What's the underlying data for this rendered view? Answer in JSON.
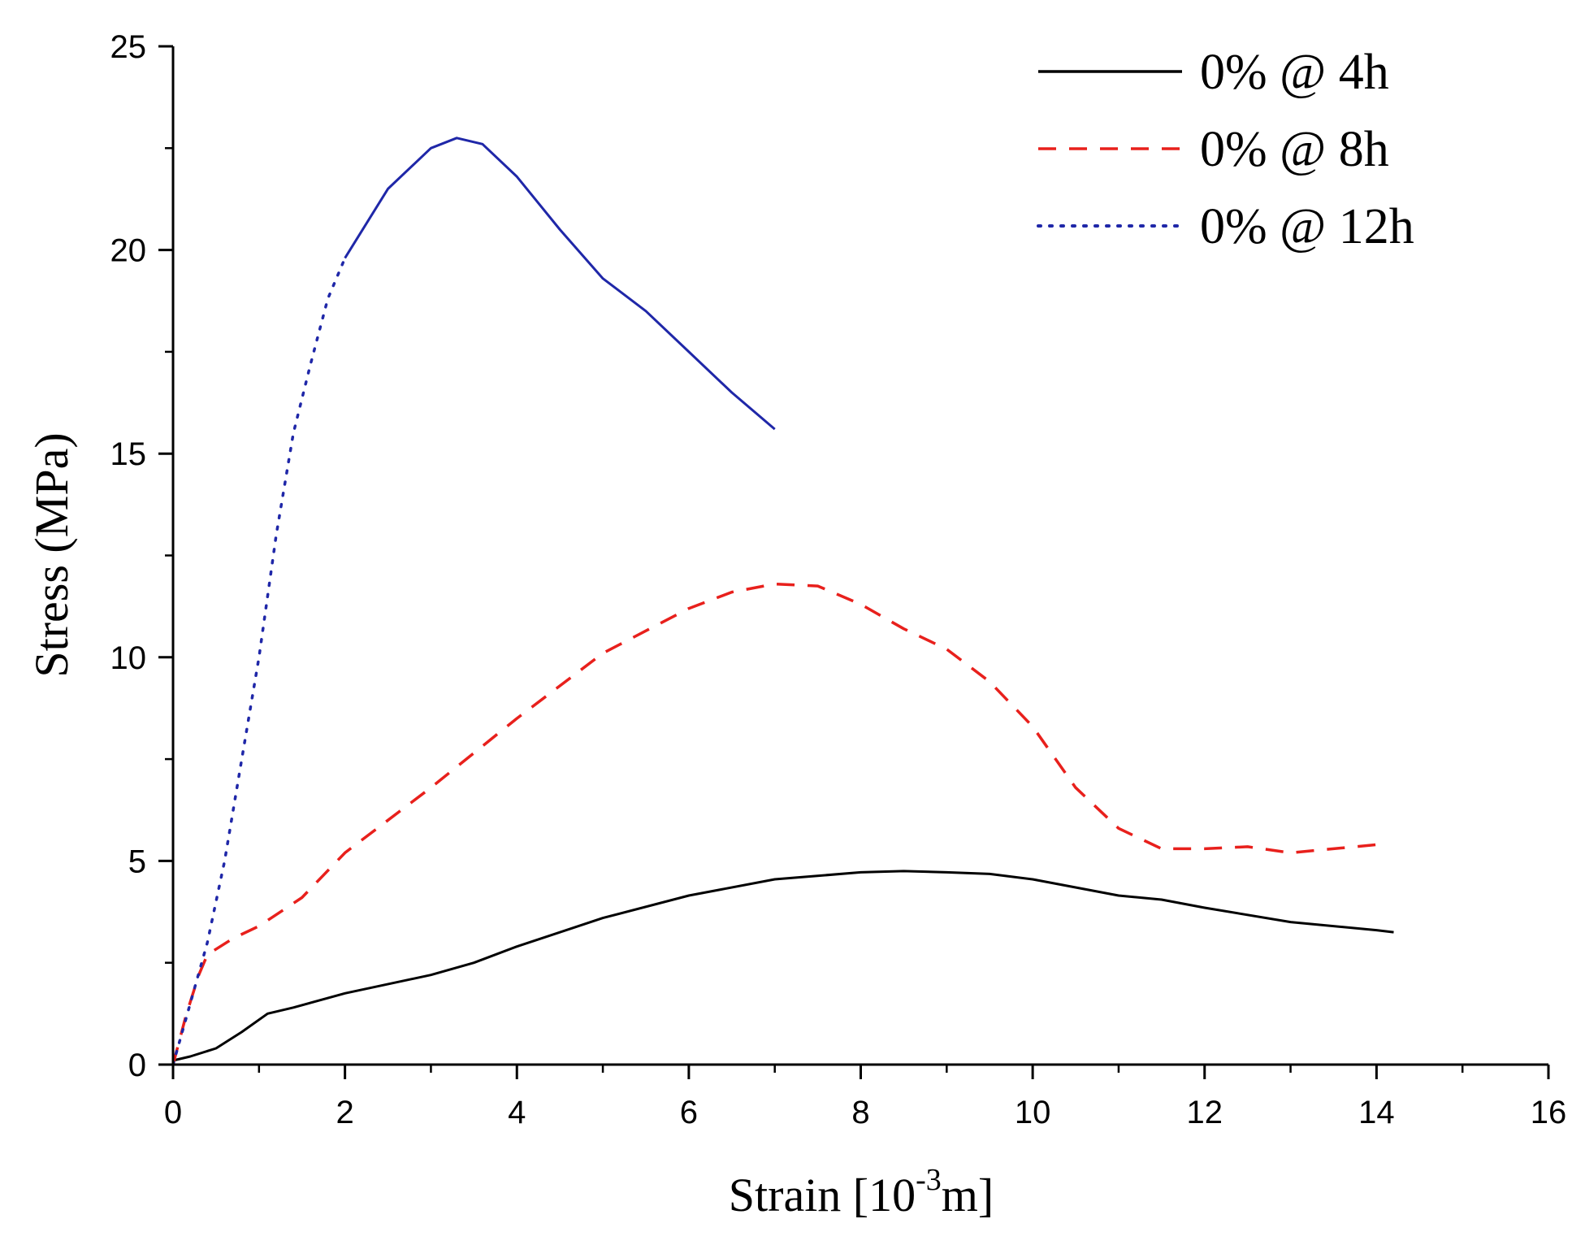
{
  "chart_data": {
    "type": "line",
    "title": "",
    "xlabel": {
      "text": "Strain [10",
      "sup": "-3",
      "suffix": "m]"
    },
    "ylabel": "Stress (MPa)",
    "xlim": [
      0,
      16
    ],
    "ylim": [
      0,
      25
    ],
    "xticks": [
      0,
      2,
      4,
      6,
      8,
      10,
      12,
      14,
      16
    ],
    "yticks": [
      0,
      5,
      10,
      15,
      20,
      25
    ],
    "grid": false,
    "legend_position": "top-right",
    "series": [
      {
        "name": "0% @ 4h",
        "color": "#000000",
        "dash": "solid",
        "points": [
          [
            0,
            0.1
          ],
          [
            0.2,
            0.2
          ],
          [
            0.5,
            0.4
          ],
          [
            0.8,
            0.8
          ],
          [
            1.1,
            1.25
          ],
          [
            1.4,
            1.4
          ],
          [
            2,
            1.75
          ],
          [
            3,
            2.2
          ],
          [
            3.5,
            2.5
          ],
          [
            4,
            2.9
          ],
          [
            5,
            3.6
          ],
          [
            6,
            4.15
          ],
          [
            7,
            4.55
          ],
          [
            8,
            4.72
          ],
          [
            8.5,
            4.75
          ],
          [
            9,
            4.72
          ],
          [
            9.5,
            4.68
          ],
          [
            10,
            4.55
          ],
          [
            11,
            4.15
          ],
          [
            11.5,
            4.05
          ],
          [
            12,
            3.85
          ],
          [
            13,
            3.5
          ],
          [
            14,
            3.3
          ],
          [
            14.2,
            3.25
          ]
        ]
      },
      {
        "name": "0% @ 8h",
        "color": "#e8201c",
        "dash": "dashed",
        "points": [
          [
            0,
            0
          ],
          [
            0.15,
            1.2
          ],
          [
            0.3,
            2.2
          ],
          [
            0.4,
            2.7
          ],
          [
            0.7,
            3.1
          ],
          [
            1,
            3.4
          ],
          [
            1.5,
            4.1
          ],
          [
            2,
            5.2
          ],
          [
            3,
            6.8
          ],
          [
            4,
            8.5
          ],
          [
            5,
            10.1
          ],
          [
            6,
            11.2
          ],
          [
            6.5,
            11.6
          ],
          [
            7,
            11.8
          ],
          [
            7.5,
            11.75
          ],
          [
            8,
            11.3
          ],
          [
            8.5,
            10.7
          ],
          [
            9,
            10.2
          ],
          [
            9.5,
            9.4
          ],
          [
            10,
            8.3
          ],
          [
            10.5,
            6.8
          ],
          [
            11,
            5.8
          ],
          [
            11.5,
            5.3
          ],
          [
            12,
            5.3
          ],
          [
            12.5,
            5.35
          ],
          [
            13,
            5.2
          ],
          [
            13.5,
            5.3
          ],
          [
            14,
            5.4
          ]
        ]
      },
      {
        "name": "0% @ 12h",
        "color": "#1f27a8",
        "dash": "dotted",
        "points": [
          [
            0,
            0
          ],
          [
            0.2,
            1.5
          ],
          [
            0.4,
            3
          ],
          [
            0.6,
            5
          ],
          [
            0.8,
            7.5
          ],
          [
            1,
            10
          ],
          [
            1.2,
            13
          ],
          [
            1.4,
            15.5
          ],
          [
            1.6,
            17.2
          ],
          [
            1.8,
            18.8
          ],
          [
            2,
            19.8
          ],
          [
            2.5,
            21.5
          ],
          [
            3,
            22.5
          ],
          [
            3.3,
            22.75
          ],
          [
            3.6,
            22.6
          ],
          [
            4,
            21.8
          ],
          [
            4.5,
            20.5
          ],
          [
            5,
            19.3
          ],
          [
            5.5,
            18.5
          ],
          [
            6,
            17.5
          ],
          [
            6.5,
            16.5
          ],
          [
            7,
            15.6
          ]
        ],
        "solid_from_x": 2
      }
    ]
  }
}
